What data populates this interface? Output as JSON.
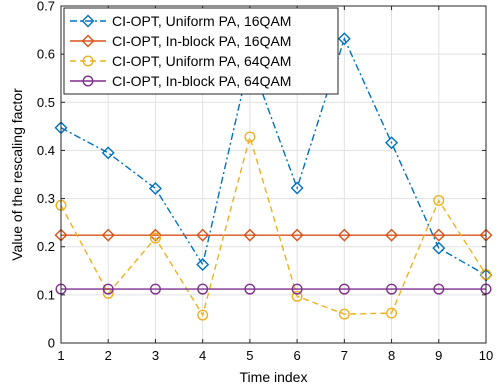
{
  "chart_data": {
    "type": "line",
    "xlabel": "Time index",
    "ylabel": "Value of the rescaling factor",
    "x": [
      1,
      2,
      3,
      4,
      5,
      6,
      7,
      8,
      9,
      10
    ],
    "xlim": [
      1,
      10
    ],
    "ylim": [
      0,
      0.7
    ],
    "xticks": [
      "1",
      "2",
      "3",
      "4",
      "5",
      "6",
      "7",
      "8",
      "9",
      "10"
    ],
    "yticks": [
      "0",
      "0.1",
      "0.2",
      "0.3",
      "0.4",
      "0.5",
      "0.6",
      "0.7"
    ],
    "grid": true,
    "legend_position": "top-left",
    "series": [
      {
        "name": "CI-OPT, Uniform PA, 16QAM",
        "color": "#0072BD",
        "line_style": "dash-dot",
        "marker": "diamond",
        "values": [
          0.447,
          0.395,
          0.321,
          0.163,
          0.59,
          0.322,
          0.632,
          0.416,
          0.197,
          0.141
        ]
      },
      {
        "name": "CI-OPT, In-block PA, 16QAM",
        "color": "#D95319",
        "line_style": "solid",
        "marker": "diamond",
        "values": [
          0.224,
          0.224,
          0.224,
          0.224,
          0.224,
          0.224,
          0.224,
          0.224,
          0.224,
          0.224
        ]
      },
      {
        "name": "CI-OPT, Uniform PA, 64QAM",
        "color": "#EDB120",
        "line_style": "dashed",
        "marker": "circle",
        "values": [
          0.286,
          0.103,
          0.218,
          0.058,
          0.428,
          0.097,
          0.06,
          0.062,
          0.296,
          0.142
        ]
      },
      {
        "name": "CI-OPT, In-block PA, 64QAM",
        "color": "#7E2F8E",
        "line_style": "solid",
        "marker": "circle",
        "values": [
          0.112,
          0.112,
          0.112,
          0.112,
          0.112,
          0.112,
          0.112,
          0.112,
          0.112,
          0.112
        ]
      }
    ]
  }
}
